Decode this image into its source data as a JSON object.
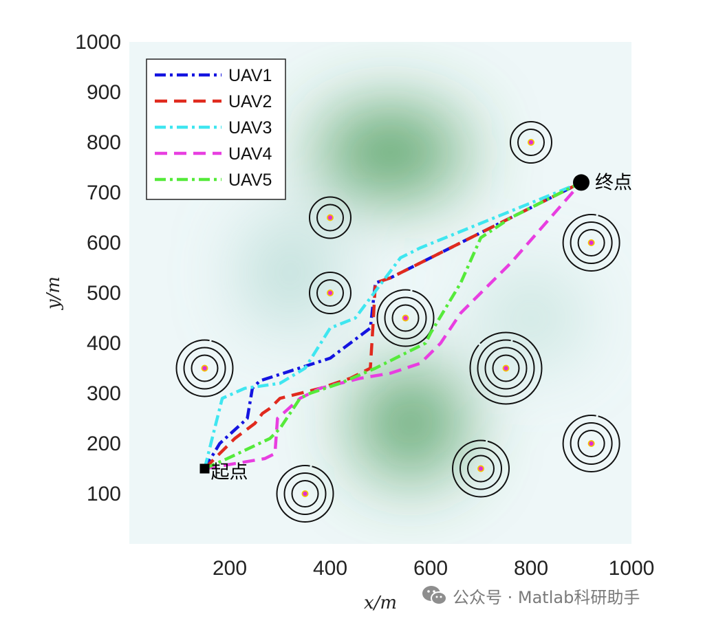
{
  "chart_data": {
    "type": "line",
    "xlabel": "x/m",
    "ylabel": "y/m",
    "xlim": [
      0,
      1000
    ],
    "ylim": [
      0,
      1000
    ],
    "x_ticks": [
      200,
      400,
      600,
      800,
      1000
    ],
    "y_ticks": [
      100,
      200,
      300,
      400,
      500,
      600,
      700,
      800,
      900,
      1000
    ],
    "grid": false,
    "legend_position": "top-left",
    "start": {
      "label": "起点",
      "x": 150,
      "y": 150
    },
    "goal": {
      "label": "终点",
      "x": 900,
      "y": 720
    },
    "terrain_peaks": [
      {
        "x": 520,
        "y": 780
      },
      {
        "x": 560,
        "y": 240
      },
      {
        "x": 320,
        "y": 540
      },
      {
        "x": 800,
        "y": 450
      }
    ],
    "threats": [
      {
        "x": 150,
        "y": 350,
        "rings": 3
      },
      {
        "x": 350,
        "y": 100,
        "rings": 3
      },
      {
        "x": 400,
        "y": 650,
        "rings": 2
      },
      {
        "x": 400,
        "y": 500,
        "rings": 2
      },
      {
        "x": 550,
        "y": 450,
        "rings": 3
      },
      {
        "x": 700,
        "y": 150,
        "rings": 3
      },
      {
        "x": 750,
        "y": 350,
        "rings": 4
      },
      {
        "x": 800,
        "y": 800,
        "rings": 2
      },
      {
        "x": 920,
        "y": 600,
        "rings": 3
      },
      {
        "x": 920,
        "y": 200,
        "rings": 3
      }
    ],
    "series": [
      {
        "name": "UAV1",
        "color": "#1414e0",
        "dash": "dashdot",
        "points": [
          [
            150,
            150
          ],
          [
            180,
            200
          ],
          [
            235,
            250
          ],
          [
            245,
            310
          ],
          [
            260,
            325
          ],
          [
            400,
            370
          ],
          [
            480,
            430
          ],
          [
            490,
            520
          ],
          [
            520,
            530
          ],
          [
            700,
            620
          ],
          [
            900,
            720
          ]
        ]
      },
      {
        "name": "UAV2",
        "color": "#e02a1e",
        "dash": "dashed",
        "points": [
          [
            150,
            150
          ],
          [
            210,
            210
          ],
          [
            250,
            240
          ],
          [
            265,
            260
          ],
          [
            280,
            270
          ],
          [
            300,
            290
          ],
          [
            380,
            310
          ],
          [
            440,
            330
          ],
          [
            480,
            350
          ],
          [
            485,
            430
          ],
          [
            490,
            520
          ],
          [
            520,
            530
          ],
          [
            700,
            620
          ],
          [
            900,
            720
          ]
        ]
      },
      {
        "name": "UAV3",
        "color": "#3fe6f0",
        "dash": "dashdot",
        "points": [
          [
            150,
            150
          ],
          [
            165,
            210
          ],
          [
            185,
            290
          ],
          [
            230,
            310
          ],
          [
            300,
            320
          ],
          [
            350,
            350
          ],
          [
            400,
            430
          ],
          [
            450,
            450
          ],
          [
            540,
            570
          ],
          [
            580,
            590
          ],
          [
            900,
            720
          ]
        ]
      },
      {
        "name": "UAV4",
        "color": "#e83ee0",
        "dash": "dashed",
        "points": [
          [
            150,
            150
          ],
          [
            210,
            160
          ],
          [
            270,
            170
          ],
          [
            290,
            180
          ],
          [
            295,
            250
          ],
          [
            340,
            290
          ],
          [
            380,
            310
          ],
          [
            420,
            320
          ],
          [
            460,
            330
          ],
          [
            520,
            340
          ],
          [
            580,
            360
          ],
          [
            620,
            400
          ],
          [
            660,
            460
          ],
          [
            700,
            500
          ],
          [
            760,
            560
          ],
          [
            900,
            720
          ]
        ]
      },
      {
        "name": "UAV5",
        "color": "#55ea3a",
        "dash": "dashdot",
        "points": [
          [
            150,
            150
          ],
          [
            195,
            170
          ],
          [
            280,
            210
          ],
          [
            300,
            230
          ],
          [
            340,
            290
          ],
          [
            360,
            300
          ],
          [
            420,
            320
          ],
          [
            490,
            350
          ],
          [
            590,
            400
          ],
          [
            600,
            420
          ],
          [
            660,
            520
          ],
          [
            700,
            610
          ],
          [
            760,
            650
          ],
          [
            900,
            720
          ]
        ]
      }
    ]
  },
  "watermark": {
    "text": "公众号 · Matlab科研助手",
    "icon": "wechat-icon"
  }
}
